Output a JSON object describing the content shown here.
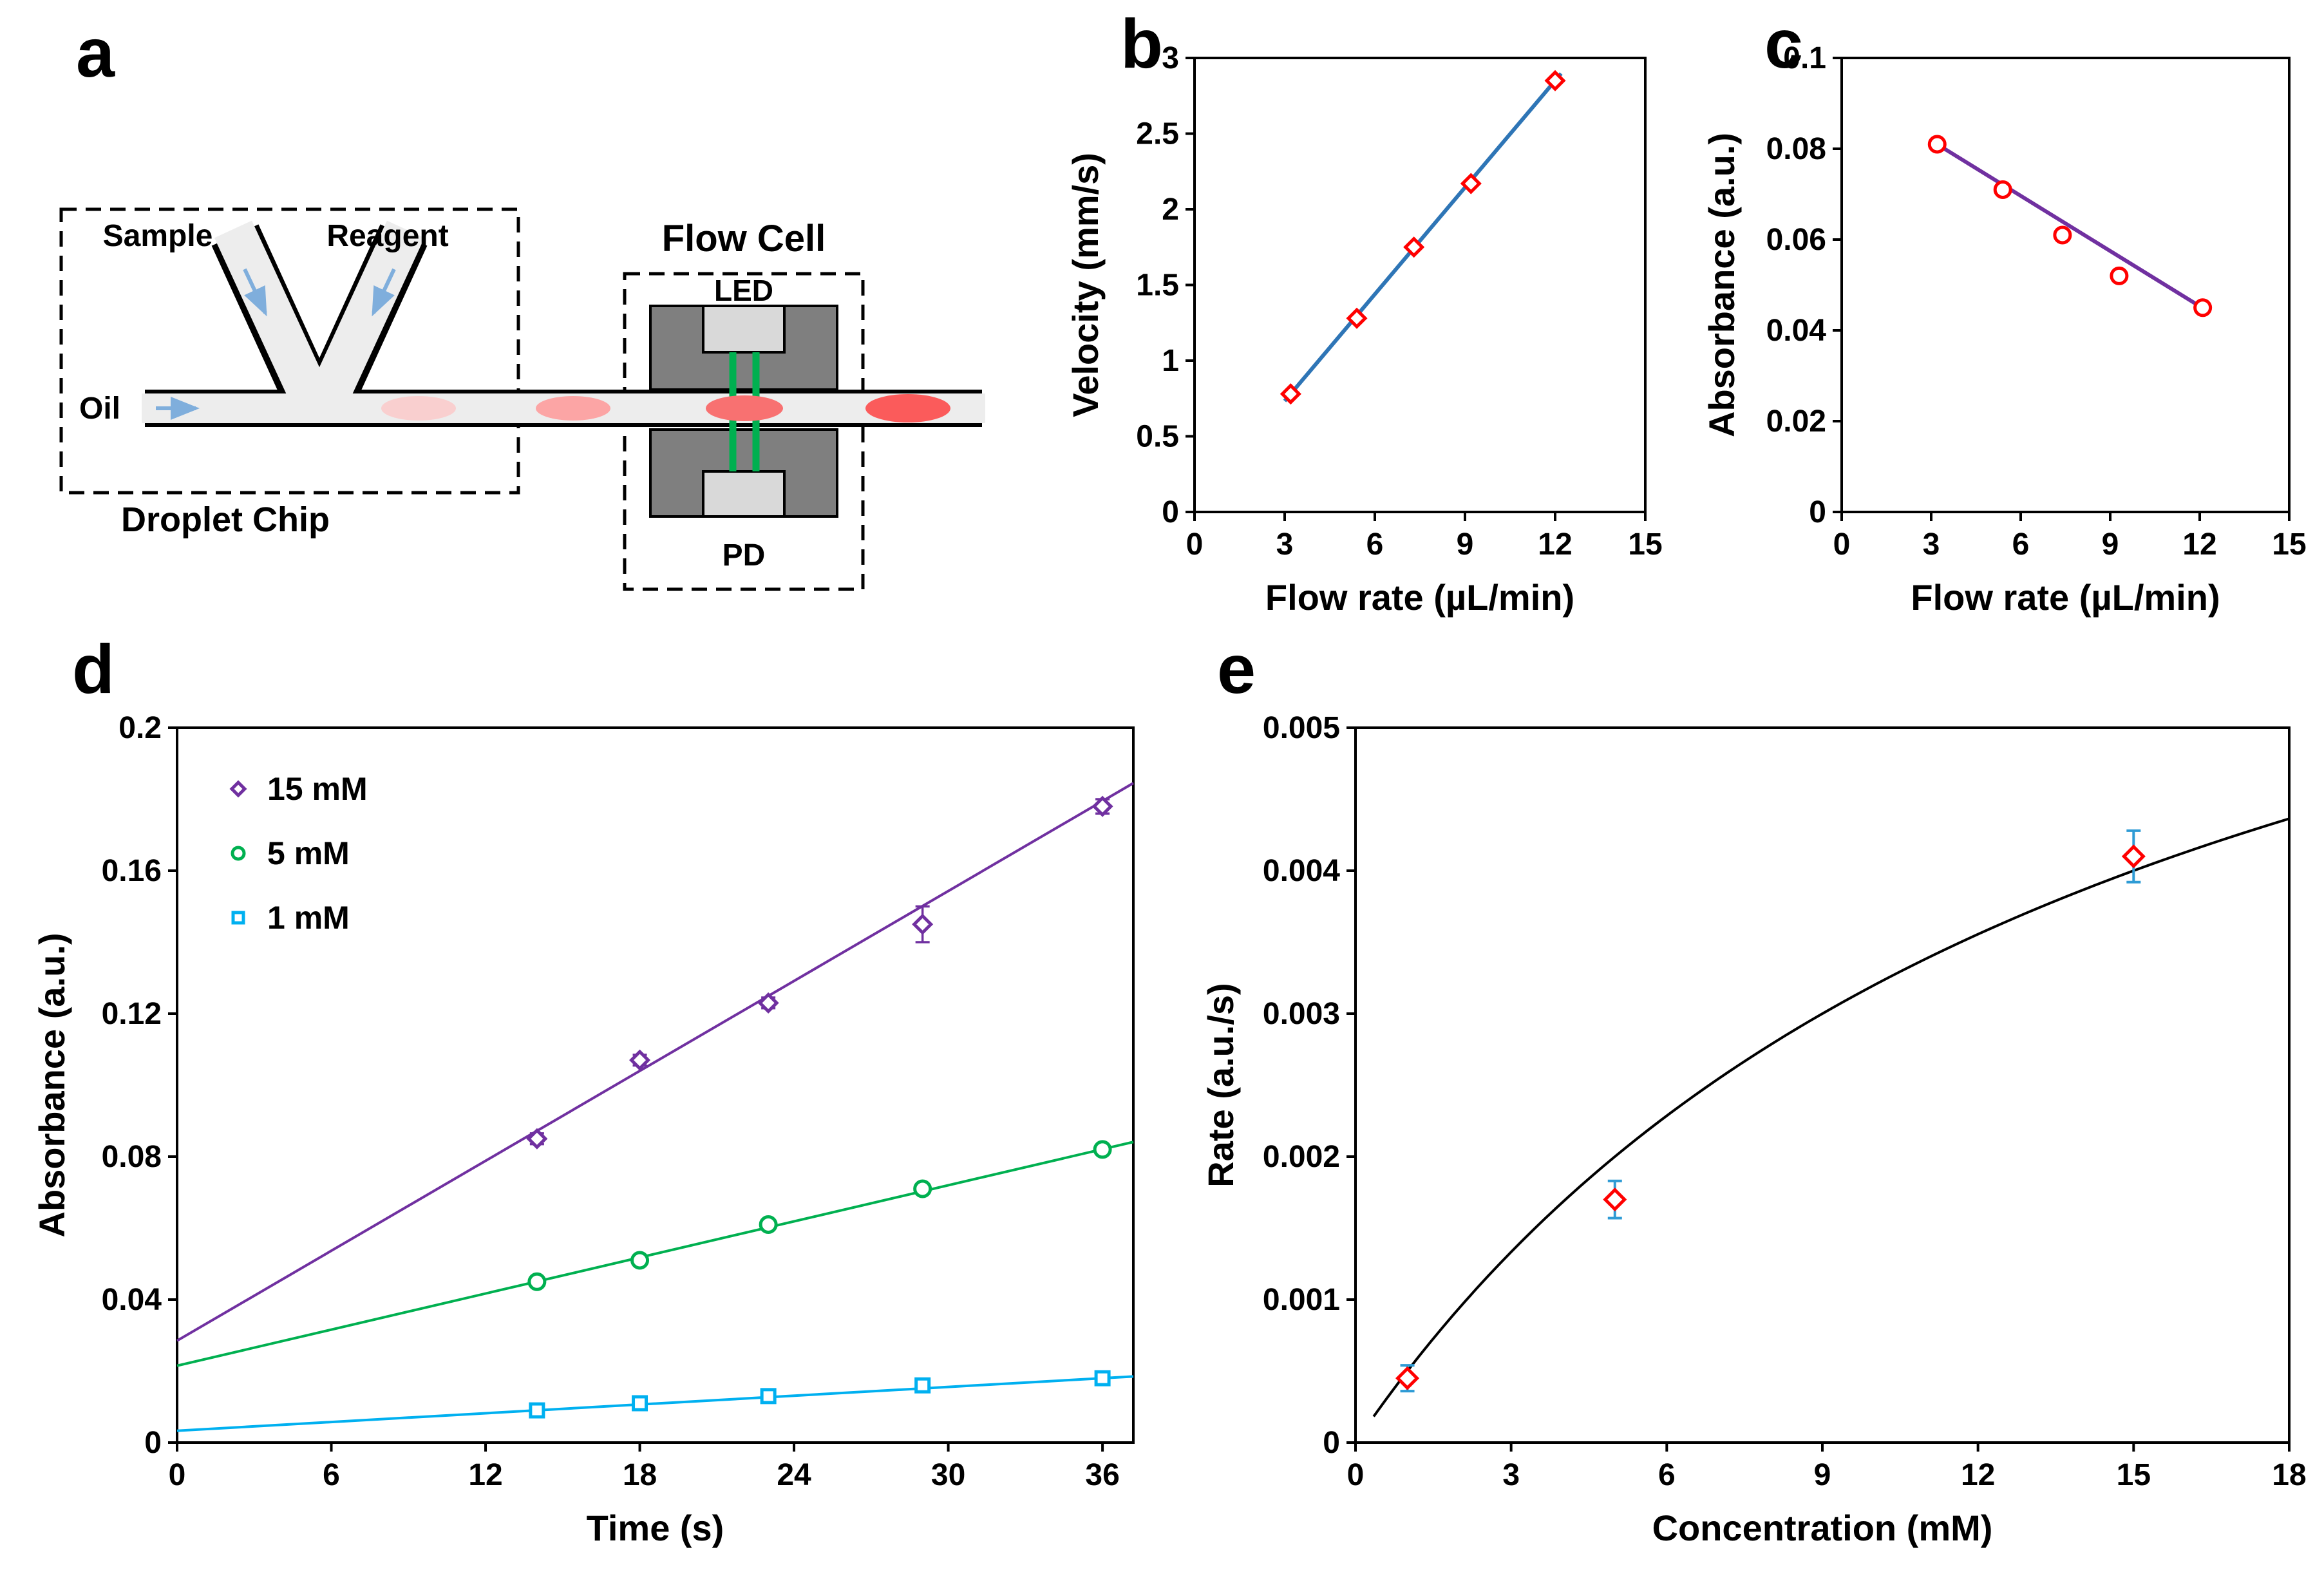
{
  "figure": {
    "panel_labels": {
      "a": "a",
      "b": "b",
      "c": "c",
      "d": "d",
      "e": "e"
    },
    "schematic": {
      "sample_label": "Sample",
      "reagent_label": "Reagent",
      "oil_label": "Oil",
      "droplet_chip_label": "Droplet Chip",
      "flow_cell_label": "Flow Cell",
      "led_label": "LED",
      "pd_label": "PD",
      "colors": {
        "channel_fill": "#EDEDED",
        "channel_outline": "#000000",
        "housing_dark": "#7F7F7F",
        "optic_light": "#D9D9D9",
        "beam_green": "#00B050",
        "arrow_blue": "#7FAEDC",
        "droplets": [
          "#F9CFCF",
          "#FCA5A5",
          "#F87171",
          "#FB5B5B"
        ]
      }
    }
  },
  "chart_data": [
    {
      "id": "b",
      "type": "scatter",
      "xlabel": "Flow rate (µL/min)",
      "ylabel": "Velocity (mm/s)",
      "xlim": [
        0,
        15
      ],
      "ylim": [
        0,
        3
      ],
      "xticks": {
        "values": [
          0,
          3,
          6,
          9,
          12,
          15
        ],
        "labels": [
          "0",
          "3",
          "6",
          "9",
          "12",
          "15"
        ]
      },
      "yticks": {
        "values": [
          0,
          0.5,
          1,
          1.5,
          2,
          2.5,
          3
        ],
        "labels": [
          "0",
          "0.5",
          "1",
          "1.5",
          "2",
          "2.5",
          "3"
        ]
      },
      "series": [
        {
          "name": "velocity",
          "marker": "diamond",
          "marker_color": "#FF0000",
          "marker_size": 13,
          "line_color": "#2E75B6",
          "line_width": 6,
          "x": [
            3.2,
            5.4,
            7.3,
            9.2,
            12.0
          ],
          "y": [
            0.78,
            1.28,
            1.75,
            2.17,
            2.85
          ],
          "fit": {
            "x": [
              3.0,
              12.2
            ],
            "y": [
              0.733,
              2.897
            ]
          }
        }
      ]
    },
    {
      "id": "c",
      "type": "scatter",
      "xlabel": "Flow rate (µL/min)",
      "ylabel": "Absorbance (a.u.)",
      "xlim": [
        0,
        15
      ],
      "ylim": [
        0,
        0.1
      ],
      "xticks": {
        "values": [
          0,
          3,
          6,
          9,
          12,
          15
        ],
        "labels": [
          "0",
          "3",
          "6",
          "9",
          "12",
          "15"
        ]
      },
      "yticks": {
        "values": [
          0,
          0.02,
          0.04,
          0.06,
          0.08,
          0.1
        ],
        "labels": [
          "0",
          "0.02",
          "0.04",
          "0.06",
          "0.08",
          "0.1"
        ]
      },
      "series": [
        {
          "name": "absorbance",
          "marker": "circle",
          "marker_color": "#FF0000",
          "marker_size": 12,
          "line_color": "#7030A0",
          "line_width": 6,
          "x": [
            3.2,
            5.4,
            7.4,
            9.3,
            12.1
          ],
          "y": [
            0.081,
            0.071,
            0.061,
            0.052,
            0.045
          ],
          "fit": {
            "x": [
              3.0,
              12.3
            ],
            "y": [
              0.0818,
              0.0441
            ]
          }
        }
      ]
    },
    {
      "id": "d",
      "type": "scatter",
      "xlabel": "Time (s)",
      "ylabel": "Absorbance (a.u.)",
      "xlim": [
        0,
        37.2
      ],
      "ylim": [
        0,
        0.2
      ],
      "xticks": {
        "values": [
          0,
          6,
          12,
          18,
          24,
          30,
          36
        ],
        "labels": [
          "0",
          "6",
          "12",
          "18",
          "24",
          "30",
          "36"
        ]
      },
      "yticks": {
        "values": [
          0,
          0.04,
          0.08,
          0.12,
          0.16,
          0.2
        ],
        "labels": [
          "0",
          "0.04",
          "0.08",
          "0.12",
          "0.16",
          "0.2"
        ]
      },
      "legend": {
        "show": true,
        "position": "top-left"
      },
      "series": [
        {
          "name": "15 mM",
          "marker": "diamond",
          "marker_color": "#7030A0",
          "marker_size": 13,
          "line_color": "#7030A0",
          "line_width": 4,
          "x": [
            14,
            18,
            23,
            29,
            36
          ],
          "y": [
            0.085,
            0.107,
            0.123,
            0.145,
            0.178
          ],
          "yerr": [
            0.0015,
            0.0015,
            0.0015,
            0.005,
            0.002
          ],
          "fit": {
            "x": [
              0,
              37.2
            ],
            "y": [
              0.0285,
              0.1845
            ]
          }
        },
        {
          "name": "5 mM",
          "marker": "circle",
          "marker_color": "#00B050",
          "marker_size": 12,
          "line_color": "#00B050",
          "line_width": 4,
          "x": [
            14,
            18,
            23,
            29,
            36
          ],
          "y": [
            0.045,
            0.051,
            0.061,
            0.071,
            0.082
          ],
          "yerr": [
            0.001,
            0.001,
            0.001,
            0.001,
            0.001
          ],
          "fit": {
            "x": [
              0,
              37.2
            ],
            "y": [
              0.0215,
              0.0841
            ]
          }
        },
        {
          "name": "1 mM",
          "marker": "square",
          "marker_color": "#00B0F0",
          "marker_size": 10,
          "line_color": "#00B0F0",
          "line_width": 4,
          "x": [
            14,
            18,
            23,
            29,
            36
          ],
          "y": [
            0.009,
            0.011,
            0.013,
            0.016,
            0.018
          ],
          "yerr": [
            0.001,
            0.001,
            0.001,
            0.0018,
            0.001
          ],
          "fit": {
            "x": [
              0,
              37.2
            ],
            "y": [
              0.0033,
              0.0185
            ]
          }
        }
      ]
    },
    {
      "id": "e",
      "type": "scatter",
      "xlabel": "Concentration (mM)",
      "ylabel": "Rate (a.u./s)",
      "xlim": [
        0,
        18
      ],
      "ylim": [
        0,
        0.005
      ],
      "xticks": {
        "values": [
          0,
          3,
          6,
          9,
          12,
          15,
          18
        ],
        "labels": [
          "0",
          "3",
          "6",
          "9",
          "12",
          "15",
          "18"
        ]
      },
      "yticks": {
        "values": [
          0,
          0.001,
          0.002,
          0.003,
          0.004,
          0.005
        ],
        "labels": [
          "0",
          "0.001",
          "0.002",
          "0.003",
          "0.004",
          "0.005"
        ]
      },
      "series": [
        {
          "name": "rate",
          "marker": "diamond",
          "marker_color": "#FF0000",
          "marker_size": 15,
          "err_color": "#2E9BD5",
          "err_width": 4,
          "x": [
            1,
            5,
            15
          ],
          "y": [
            0.00045,
            0.0017,
            0.0041
          ],
          "yerr": [
            9e-05,
            0.00013,
            0.00018
          ]
        }
      ],
      "curve": {
        "model": "michaelis_menten",
        "vmax": 0.008,
        "km": 15,
        "x_range": [
          0.35,
          18
        ],
        "color": "#000000",
        "width": 4
      }
    }
  ]
}
